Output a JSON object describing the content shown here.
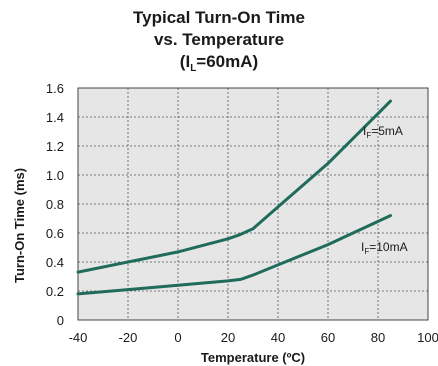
{
  "title": {
    "line1": "Typical Turn-On Time",
    "line2": "vs. Temperature",
    "line3_pre": "(I",
    "line3_sub": "L",
    "line3_post": "=60mA)"
  },
  "chart_data": {
    "type": "line",
    "title": "Typical Turn-On Time vs. Temperature (IL=60mA)",
    "xlabel": "Temperature (ºC)",
    "ylabel": "Turn-On Time (ms)",
    "xlim": [
      -40,
      100
    ],
    "ylim": [
      0,
      1.6
    ],
    "x_ticks": [
      "-40",
      "-20",
      "0",
      "20",
      "40",
      "60",
      "80",
      "100"
    ],
    "y_ticks": [
      "0",
      "0.2",
      "0.4",
      "0.6",
      "0.8",
      "1.0",
      "1.2",
      "1.4",
      "1.6"
    ],
    "grid": true,
    "series": [
      {
        "name": "IF=5mA",
        "label_pre": "I",
        "label_sub": "F",
        "label_post": "=5mA",
        "x": [
          -40,
          -20,
          0,
          20,
          25,
          30,
          40,
          60,
          85
        ],
        "y": [
          0.33,
          0.4,
          0.47,
          0.56,
          0.59,
          0.63,
          0.78,
          1.08,
          1.51
        ]
      },
      {
        "name": "IF=10mA",
        "label_pre": "I",
        "label_sub": "F",
        "label_post": "=10mA",
        "x": [
          -40,
          -20,
          0,
          20,
          25,
          30,
          40,
          60,
          85
        ],
        "y": [
          0.18,
          0.21,
          0.24,
          0.27,
          0.28,
          0.31,
          0.38,
          0.52,
          0.72
        ]
      }
    ],
    "colors": {
      "line": "#1f6b5c",
      "grid": "#555555",
      "plot_bg": "#e6e6e6"
    }
  }
}
